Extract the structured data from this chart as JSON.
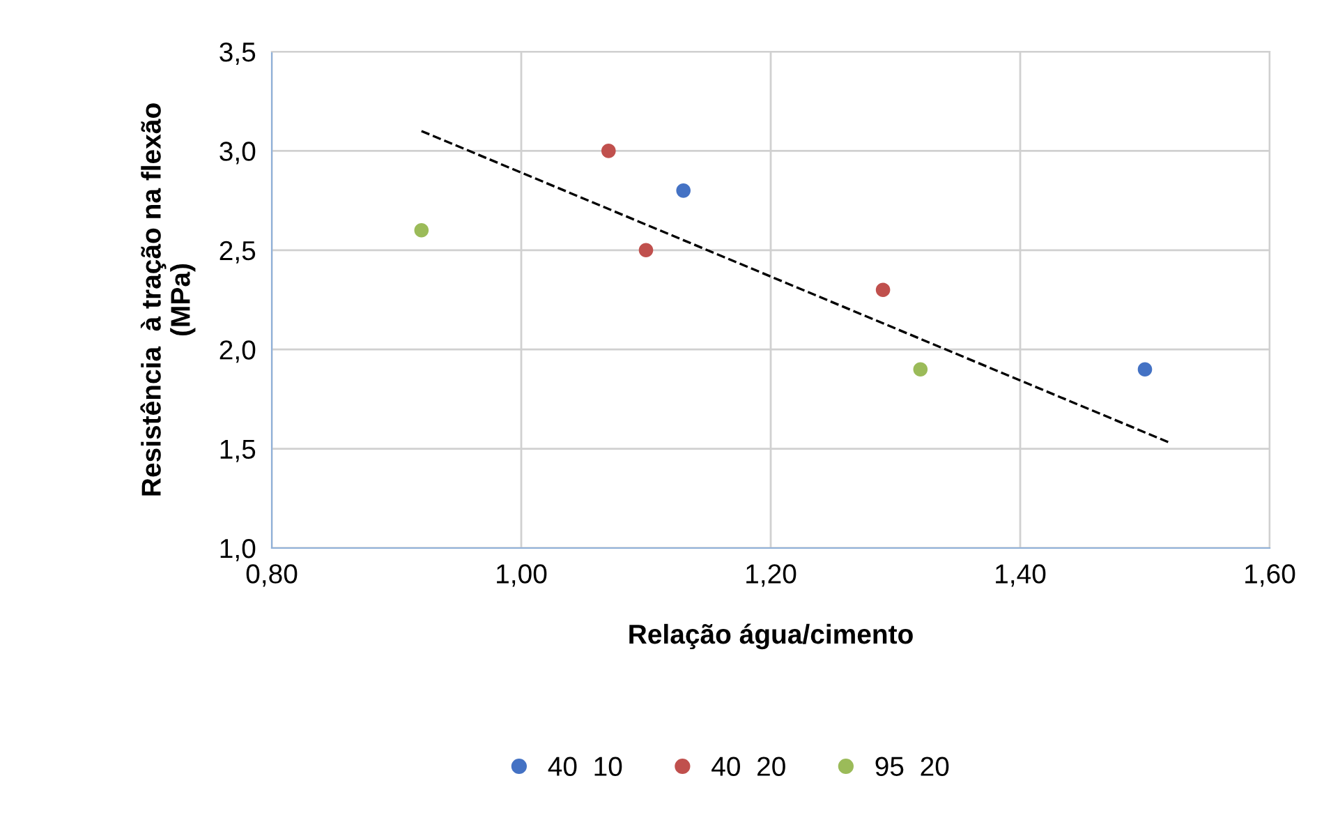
{
  "chart_data": {
    "type": "scatter",
    "xlabel": "Relação água/cimento",
    "ylabel": "Resistência  à tração na flexão\n(MPa)",
    "series": [
      {
        "name": "40  10",
        "color": "#4472c4",
        "x": [
          1.13,
          1.5
        ],
        "values": [
          2.8,
          1.9
        ]
      },
      {
        "name": "40  20",
        "color": "#c0504d",
        "x": [
          1.07,
          1.1,
          1.29
        ],
        "values": [
          3.0,
          2.5,
          2.3
        ]
      },
      {
        "name": "95  20",
        "color": "#9bbb59",
        "x": [
          0.92,
          1.32
        ],
        "values": [
          2.6,
          1.9
        ]
      },
      {
        "type": "line",
        "color": "#000000",
        "line_style": "dashed",
        "marker": "none",
        "x": [
          0.92,
          1.52
        ],
        "values": [
          3.1,
          1.53
        ]
      }
    ],
    "xlim": [
      0.8,
      1.6
    ],
    "xticks": [
      {
        "value": 0.8,
        "label": "0,80"
      },
      {
        "value": 1.0,
        "label": "1,00"
      },
      {
        "value": 1.2,
        "label": "1,20"
      },
      {
        "value": 1.4,
        "label": "1,40"
      },
      {
        "value": 1.6,
        "label": "1,60"
      }
    ],
    "ylim": [
      1.0,
      3.5
    ],
    "yticks": [
      {
        "value": 1.0,
        "label": "1,0"
      },
      {
        "value": 1.5,
        "label": "1,5"
      },
      {
        "value": 2.0,
        "label": "2,0"
      },
      {
        "value": 2.5,
        "label": "2,5"
      },
      {
        "value": 3.0,
        "label": "3,0"
      },
      {
        "value": 3.5,
        "label": "3,5"
      }
    ],
    "grid": true,
    "legend": "bottom",
    "marker": "circle"
  }
}
